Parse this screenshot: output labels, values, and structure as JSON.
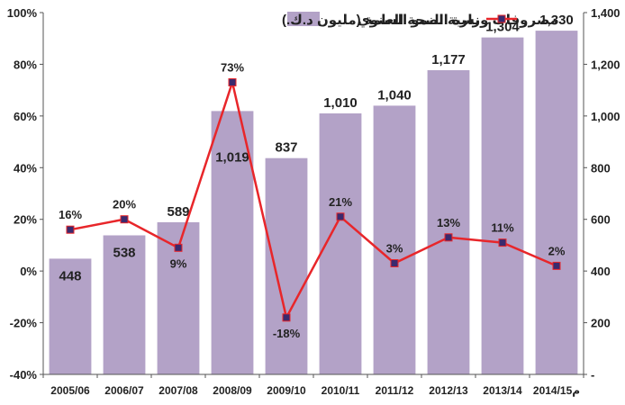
{
  "chart_data": {
    "type": "bar",
    "categories": [
      "2005/06",
      "2006/07",
      "2007/08",
      "2008/09",
      "2009/10",
      "2010/11",
      "2011/12",
      "2012/13",
      "2013/14",
      "2014/15م"
    ],
    "series": [
      {
        "name": "مصروفات وزارة الصحة العامة (مليون د.ك.)",
        "kind": "bar",
        "axis": "right",
        "color": "#b3a2c7",
        "values": [
          448,
          538,
          589,
          1019,
          837,
          1010,
          1040,
          1177,
          1304,
          1330
        ],
        "labels": [
          "448",
          "538",
          "589",
          "1,019",
          "837",
          "1,010",
          "1,040",
          "1,177",
          "1,304",
          "1,330"
        ]
      },
      {
        "name": "نسبة النمو السنوي",
        "kind": "line",
        "axis": "left",
        "color": "#e8262a",
        "marker_color": "#3a2a6e",
        "values": [
          16,
          20,
          9,
          73,
          -18,
          21,
          3,
          13,
          11,
          2
        ],
        "labels": [
          "16%",
          "20%",
          "9%",
          "73%",
          "-18%",
          "21%",
          "3%",
          "13%",
          "11%",
          "2%"
        ]
      }
    ],
    "y_left": {
      "range": [
        -40,
        100
      ],
      "ticks": [
        -40,
        -20,
        0,
        20,
        40,
        60,
        80,
        100
      ],
      "tick_labels": [
        "-40%",
        "-20%",
        "0%",
        "20%",
        "40%",
        "60%",
        "80%",
        "100%"
      ]
    },
    "y_right": {
      "range": [
        0,
        1400
      ],
      "ticks": [
        0,
        200,
        400,
        600,
        800,
        1000,
        1200,
        1400
      ],
      "tick_labels": [
        "-",
        "200",
        "400",
        "600",
        "800",
        "1,000",
        "1,200",
        "1,400"
      ]
    },
    "grid": false,
    "legend_placement": "top"
  }
}
